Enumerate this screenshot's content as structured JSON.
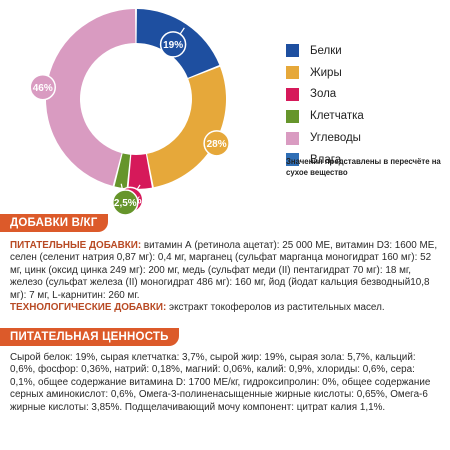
{
  "chart_data": {
    "type": "pie",
    "series": [
      {
        "name": "Белки",
        "value": 19,
        "label": "19%",
        "color": "#1e4fa0"
      },
      {
        "name": "Жиры",
        "value": 28,
        "label": "28%",
        "color": "#e6a83a"
      },
      {
        "name": "Зола",
        "value": 4.5,
        "label": "4,5%",
        "color": "#d6195a"
      },
      {
        "name": "Клетчатка",
        "value": 2.5,
        "label": "2,5%",
        "color": "#66952b"
      },
      {
        "name": "Углеводы",
        "value": 46,
        "label": "46%",
        "color": "#d99bc1"
      },
      {
        "name": "Влага",
        "value": 0,
        "label": "",
        "color": "#2f6eb5"
      }
    ],
    "note": "Значения представлены в пересчёте на сухое вещество"
  },
  "sections": {
    "additives": {
      "title": "ДОБАВКИ В/КГ",
      "nutritional_label": "ПИТАТЕЛЬНЫЕ ДОБАВКИ:",
      "nutritional_text": " витамин А (ретинола ацетат): 25 000 МЕ, витамин D3: 1600 МЕ, селен (селенит натрия 0,87 мг): 0,4 мг, марганец (сульфат марганца моногидрат 160 мг): 52 мг, цинк (оксид цинка 249 мг): 200 мг, медь (сульфат меди (II) пентагидрат 70 мг): 18 мг, железо (сульфат железа (II) моногидрат 486 мг): 160 мг, йод (йодат кальция безводный10,8 мг): 7 мг, L-карнитин: 260 мг.",
      "technological_label": "ТЕХНОЛОГИЧЕСКИЕ ДОБАВКИ:",
      "technological_text": " экстракт токоферолов из растительных масел."
    },
    "nutrition": {
      "title": "ПИТАТЕЛЬНАЯ ЦЕННОСТЬ",
      "text": "Сырой белок: 19%, сырая клетчатка: 3,7%, сырой жир: 19%, сырая зола: 5,7%, кальций: 0,6%, фосфор: 0,36%, натрий: 0,18%, магний: 0,06%, калий: 0,9%, хлориды: 0,6%, сера: 0,1%, общее содержание витамина D: 1700 МЕ/кг, гидроксипролин: 0%, общее содержание серных аминокислот: 0,6%, Омега-3-полиненасыщенные жирные кислоты: 0,65%, Омега-6 жирные кислоты: 3,85%. Подщелачивающий мочу компонент: цитрат калия 1,1%."
    }
  }
}
